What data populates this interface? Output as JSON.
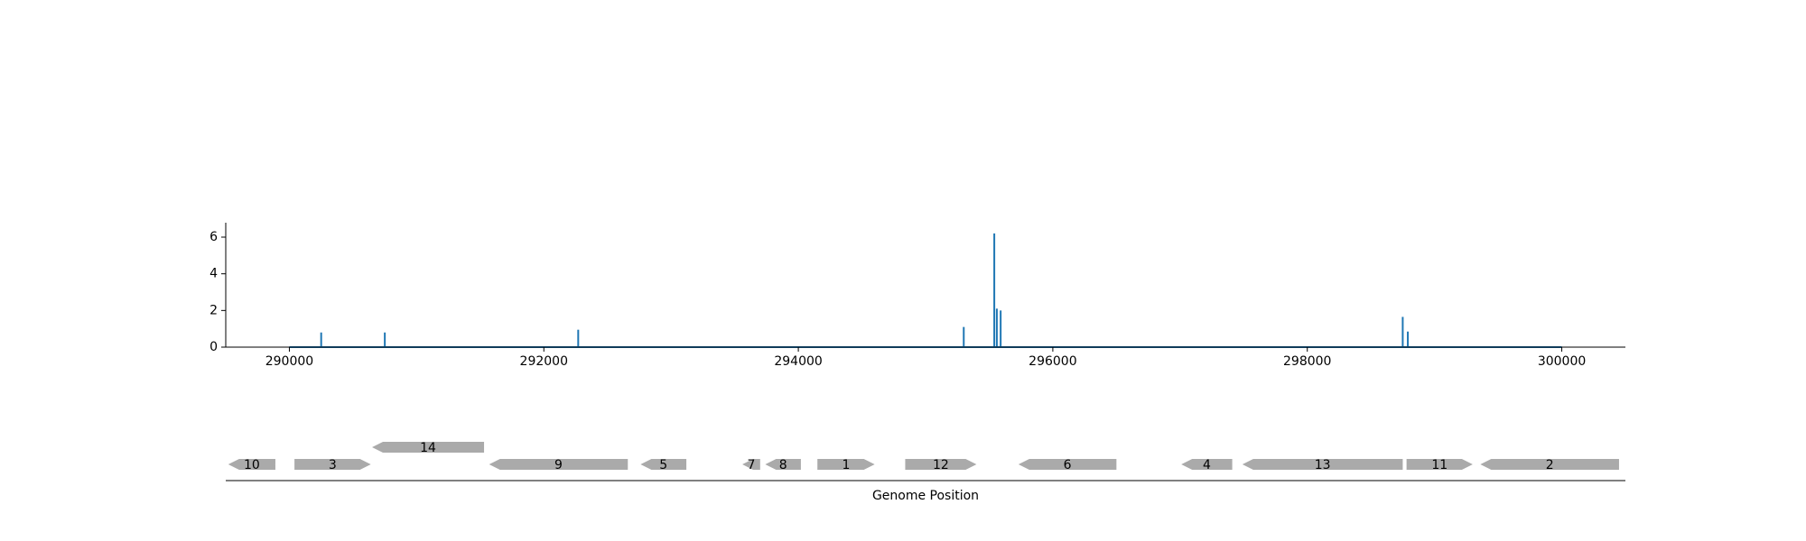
{
  "chart_data": [
    {
      "type": "line",
      "title": "",
      "xlabel": "",
      "ylabel": "",
      "xlim": [
        289500,
        300500
      ],
      "ylim": [
        0,
        6.8
      ],
      "x_ticks": [
        290000,
        292000,
        294000,
        296000,
        298000,
        300000
      ],
      "y_ticks": [
        0,
        2,
        4,
        6
      ],
      "grid": false,
      "series_color": "#1f77b4",
      "baseline": {
        "x_start": 290000,
        "x_end": 300000,
        "value": 0
      },
      "peaks": [
        {
          "x": 290250,
          "y": 0.8
        },
        {
          "x": 290750,
          "y": 0.8
        },
        {
          "x": 292270,
          "y": 0.95
        },
        {
          "x": 295300,
          "y": 1.1
        },
        {
          "x": 295540,
          "y": 6.2
        },
        {
          "x": 295560,
          "y": 2.1
        },
        {
          "x": 295590,
          "y": 2.0
        },
        {
          "x": 298750,
          "y": 1.65
        },
        {
          "x": 298790,
          "y": 0.85
        }
      ]
    },
    {
      "type": "gene-track",
      "xlabel": "Genome Position",
      "xlim": [
        289500,
        300500
      ],
      "gene_color": "#aaaaaa",
      "genes": [
        {
          "label": "10",
          "start": 289520,
          "end": 289890,
          "strand": "-",
          "row": 0
        },
        {
          "label": "3",
          "start": 290040,
          "end": 290640,
          "strand": "+",
          "row": 0
        },
        {
          "label": "14",
          "start": 290650,
          "end": 291530,
          "strand": "-",
          "row": 1
        },
        {
          "label": "9",
          "start": 291570,
          "end": 292660,
          "strand": "-",
          "row": 0
        },
        {
          "label": "5",
          "start": 292760,
          "end": 293120,
          "strand": "-",
          "row": 0
        },
        {
          "label": "7",
          "start": 293560,
          "end": 293700,
          "strand": "-",
          "row": 0
        },
        {
          "label": "8",
          "start": 293740,
          "end": 294020,
          "strand": "-",
          "row": 0
        },
        {
          "label": "1",
          "start": 294150,
          "end": 294600,
          "strand": "+",
          "row": 0
        },
        {
          "label": "12",
          "start": 294840,
          "end": 295400,
          "strand": "+",
          "row": 0
        },
        {
          "label": "6",
          "start": 295730,
          "end": 296500,
          "strand": "-",
          "row": 0
        },
        {
          "label": "4",
          "start": 297010,
          "end": 297410,
          "strand": "-",
          "row": 0
        },
        {
          "label": "13",
          "start": 297490,
          "end": 298750,
          "strand": "-",
          "row": 0
        },
        {
          "label": "11",
          "start": 298780,
          "end": 299300,
          "strand": "+",
          "row": 0
        },
        {
          "label": "2",
          "start": 299360,
          "end": 300450,
          "strand": "-",
          "row": 0
        }
      ]
    }
  ]
}
